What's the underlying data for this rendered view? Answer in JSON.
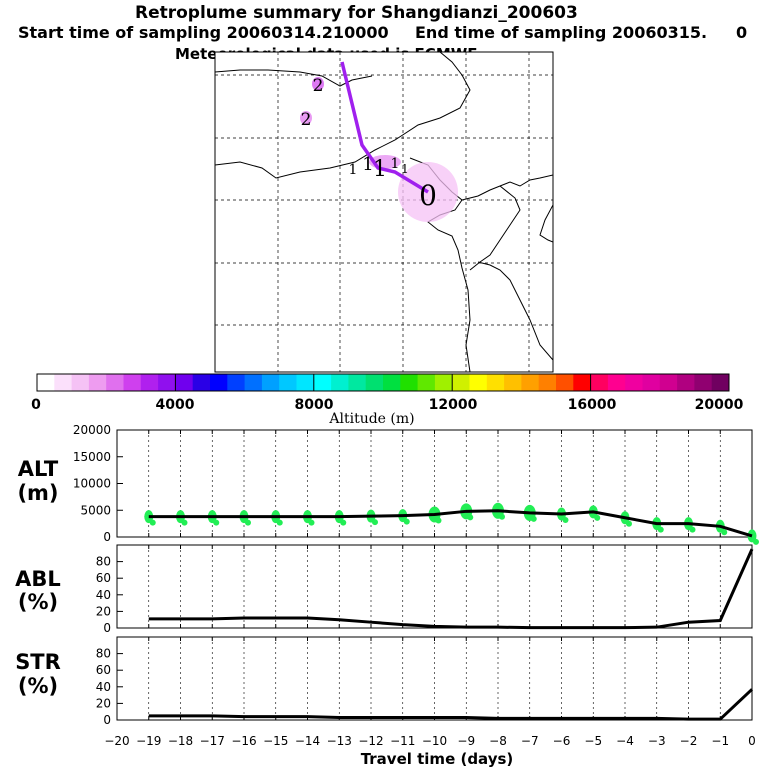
{
  "header": {
    "title": "Retroplume summary for Shangdianzi_200603",
    "start": "Start time of sampling 20060314.210000",
    "end": "End time of sampling 20060315.",
    "end_suffix": "0",
    "met": "Meteorological data used is ECMWF"
  },
  "map": {
    "markers": [
      {
        "label": "0",
        "age_days": 0
      },
      {
        "label": "1",
        "age_days": 1
      },
      {
        "label": "1",
        "age_days": 1
      },
      {
        "label": "1",
        "age_days": 1
      },
      {
        "label": "1",
        "age_days": 1
      },
      {
        "label": "1",
        "age_days": 1
      },
      {
        "label": "2",
        "age_days": 2
      },
      {
        "label": "2",
        "age_days": 2
      }
    ]
  },
  "colorbar": {
    "label": "Altitude (m)",
    "ticks": [
      "0",
      "4000",
      "8000",
      "12000",
      "16000",
      "20000"
    ],
    "colors": [
      "#ffffff",
      "#fbe0fb",
      "#f5c2f5",
      "#ee9cf0",
      "#e070ee",
      "#cf40ee",
      "#b020ee",
      "#9010ee",
      "#7000ee",
      "#2a00e6",
      "#0000ff",
      "#0040ff",
      "#0070ff",
      "#00a0ff",
      "#00c8ff",
      "#00e6ff",
      "#00ffff",
      "#00f0d0",
      "#00e8a0",
      "#00e070",
      "#00e040",
      "#20e000",
      "#60e800",
      "#a0f000",
      "#d0f000",
      "#ffff00",
      "#ffe000",
      "#ffc000",
      "#ffa000",
      "#ff8000",
      "#ff5000",
      "#ff0000",
      "#ff0060",
      "#ff0090",
      "#f000a0",
      "#e000a0",
      "#d00090",
      "#b00080",
      "#900070",
      "#700060"
    ]
  },
  "chart_data": [
    {
      "type": "line",
      "id": "ALT",
      "ylabel": "ALT (m)",
      "ylabel_line1": "ALT",
      "ylabel_line2": "(m)",
      "x": [
        -19,
        -18,
        -17,
        -16,
        -15,
        -14,
        -13,
        -12,
        -11,
        -10,
        -9,
        -8,
        -7,
        -6,
        -5,
        -4,
        -3,
        -2,
        -1,
        0
      ],
      "values": [
        3800,
        3800,
        3800,
        3800,
        3800,
        3800,
        3800,
        3900,
        4000,
        4200,
        4800,
        4900,
        4500,
        4300,
        4700,
        3600,
        2500,
        2500,
        2000,
        200
      ],
      "yticks": [
        "0",
        "5000",
        "10000",
        "15000",
        "20000"
      ],
      "ylim": [
        0,
        20000
      ],
      "xlim": [
        -20,
        0
      ]
    },
    {
      "type": "line",
      "id": "ABL",
      "ylabel": "ABL (%)",
      "ylabel_line1": "ABL",
      "ylabel_line2": "(%)",
      "x": [
        -19,
        -18,
        -17,
        -16,
        -15,
        -14,
        -13,
        -12,
        -11,
        -10,
        -9,
        -8,
        -7,
        -6,
        -5,
        -4,
        -3,
        -2,
        -1,
        0
      ],
      "values": [
        11,
        11,
        11,
        12,
        12,
        12,
        10,
        7,
        4,
        2,
        1,
        1,
        0.5,
        0.5,
        0.5,
        0.5,
        1,
        7,
        9,
        95
      ],
      "yticks": [
        "0",
        "20",
        "40",
        "60",
        "80"
      ],
      "ylim": [
        0,
        100
      ],
      "xlim": [
        -20,
        0
      ]
    },
    {
      "type": "line",
      "id": "STR",
      "ylabel": "STR (%)",
      "ylabel_line1": "STR",
      "ylabel_line2": "(%)",
      "x": [
        -19,
        -18,
        -17,
        -16,
        -15,
        -14,
        -13,
        -12,
        -11,
        -10,
        -9,
        -8,
        -7,
        -6,
        -5,
        -4,
        -3,
        -2,
        -1,
        0
      ],
      "values": [
        5,
        5,
        5,
        4,
        4,
        4,
        3,
        3,
        3,
        3,
        3,
        2,
        2,
        2,
        2,
        2,
        2,
        1,
        1,
        37
      ],
      "yticks": [
        "0",
        "20",
        "40",
        "60",
        "80"
      ],
      "ylim": [
        0,
        100
      ],
      "xlim": [
        -20,
        0
      ],
      "xticks": [
        "−20",
        "−19",
        "−18",
        "−17",
        "−16",
        "−15",
        "−14",
        "−13",
        "−12",
        "−11",
        "−10",
        "−9",
        "−8",
        "−7",
        "−6",
        "−5",
        "−4",
        "−3",
        "−2",
        "−1",
        "0"
      ],
      "xlabel": "Travel time (days)"
    }
  ]
}
